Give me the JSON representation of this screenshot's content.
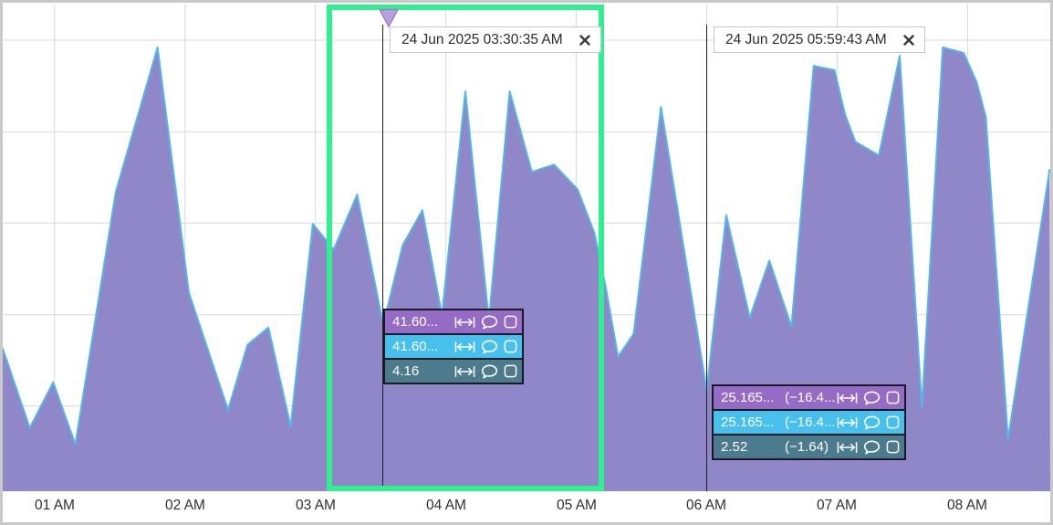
{
  "panel": {
    "background": "#ffffff",
    "frame_color": "#c9c9c9",
    "gridline_color": "#d9d9d9"
  },
  "chart_data": {
    "type": "area",
    "title": "",
    "xlabel": "",
    "ylabel": "",
    "x_axis": {
      "tick_labels": [
        "01 AM",
        "02 AM",
        "03 AM",
        "04 AM",
        "05 AM",
        "06 AM",
        "07 AM",
        "08 AM"
      ],
      "tick_values": [
        1,
        2,
        3,
        4,
        5,
        6,
        7,
        8
      ],
      "range": [
        0.603,
        8.634
      ],
      "date": "24 Jun 2025"
    },
    "y_axis": {
      "labels_visible": false,
      "max": 121.6,
      "gridline_values": [
        21.3,
        44.1,
        67.0,
        89.8,
        112.7
      ]
    },
    "series": [
      {
        "name": "primary-area",
        "fill": "#8f87c7",
        "stroke": "#54b6e9",
        "points": [
          [
            0.6,
            35.9
          ],
          [
            0.81,
            15.8
          ],
          [
            0.99,
            27.2
          ],
          [
            1.16,
            11.7
          ],
          [
            1.47,
            74.8
          ],
          [
            1.79,
            110.9
          ],
          [
            2.03,
            49.6
          ],
          [
            2.33,
            20.3
          ],
          [
            2.48,
            36.6
          ],
          [
            2.64,
            40.9
          ],
          [
            2.81,
            16.2
          ],
          [
            2.98,
            66.8
          ],
          [
            3.14,
            60.4
          ],
          [
            3.32,
            74.1
          ],
          [
            3.52,
            41.6
          ],
          [
            3.67,
            61.5
          ],
          [
            3.82,
            70.2
          ],
          [
            3.97,
            43.9
          ],
          [
            4.15,
            99.9
          ],
          [
            4.33,
            42.7
          ],
          [
            4.49,
            99.9
          ],
          [
            4.66,
            79.8
          ],
          [
            4.83,
            81.6
          ],
          [
            5.01,
            75.4
          ],
          [
            5.14,
            64.5
          ],
          [
            5.23,
            50.3
          ],
          [
            5.32,
            33.6
          ],
          [
            5.44,
            39.3
          ],
          [
            5.65,
            96.0
          ],
          [
            6.0,
            25.2
          ],
          [
            6.15,
            69.0
          ],
          [
            6.33,
            43.4
          ],
          [
            6.48,
            57.6
          ],
          [
            6.65,
            41.1
          ],
          [
            6.82,
            106.3
          ],
          [
            6.98,
            105.2
          ],
          [
            7.06,
            94.2
          ],
          [
            7.14,
            87.3
          ],
          [
            7.32,
            83.9
          ],
          [
            7.48,
            108.8
          ],
          [
            7.65,
            21.0
          ],
          [
            7.81,
            110.9
          ],
          [
            7.97,
            109.5
          ],
          [
            8.07,
            102.2
          ],
          [
            8.14,
            93.5
          ],
          [
            8.31,
            13.0
          ],
          [
            8.63,
            80.5
          ]
        ]
      },
      {
        "name": "secondary-line",
        "stroke": "#3fc7f2",
        "note": "coincides with primary-area outline",
        "scale_factor": 1
      },
      {
        "name": "tertiary-line",
        "stroke": "#487a8a",
        "note": "primary divided by 10, hidden behind area fill",
        "scale_factor": 0.1
      }
    ]
  },
  "cursors": [
    {
      "timestamp": "24 Jun 2025 03:30:35 AM",
      "time_decimal": 3.5097,
      "close_icon": "✖",
      "marker": "triangle-down",
      "marker_color": "#bb9fdc",
      "badges": [
        {
          "value": "41.60...",
          "delta": "",
          "bg": "rgba(151,104,196,0.9)"
        },
        {
          "value": "41.60...",
          "delta": "",
          "bg": "rgba(63,199,242,0.9)"
        },
        {
          "value": "4.16",
          "delta": "",
          "bg": "rgba(72,122,138,0.93)"
        }
      ]
    },
    {
      "timestamp": "24 Jun 2025 05:59:43 AM",
      "time_decimal": 5.9953,
      "close_icon": "✖",
      "marker": "none",
      "badges": [
        {
          "value": "25.165...",
          "delta": "(−16.4...",
          "bg": "rgba(151,104,196,0.9)"
        },
        {
          "value": "25.165...",
          "delta": "(−16.4...",
          "bg": "rgba(63,199,242,0.9)"
        },
        {
          "value": "2.52",
          "delta": "(−1.64)",
          "bg": "rgba(72,122,138,0.93)"
        }
      ]
    }
  ],
  "badge_icons": [
    "width-measure-icon",
    "comment-bubble-icon",
    "box-icon"
  ],
  "highlight": {
    "shape": "rectangle",
    "color": "#2ef08e"
  }
}
